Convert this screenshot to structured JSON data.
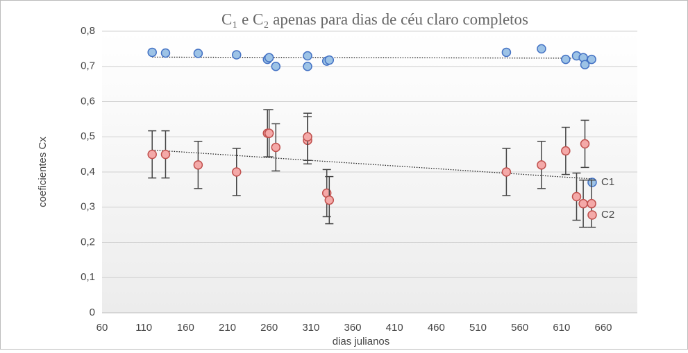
{
  "chart_data": {
    "type": "scatter",
    "title": "C₁ e C₂ apenas para dias de céu claro completos",
    "x_label": "dias julianos",
    "y_label": "coeficientes Cx",
    "x": [
      120,
      136,
      175,
      221,
      258,
      260,
      268,
      306,
      306,
      329,
      332,
      544,
      586,
      615,
      628,
      636,
      638,
      646
    ],
    "series": [
      {
        "name": "C1",
        "color": "#9dc3e6",
        "edge": "#4472c4",
        "values": [
          0.74,
          0.738,
          0.737,
          0.733,
          0.72,
          0.725,
          0.7,
          0.73,
          0.7,
          0.715,
          0.718,
          0.74,
          0.75,
          0.72,
          0.73,
          0.725,
          0.705,
          0.72
        ]
      },
      {
        "name": "C2",
        "color": "#f4a9a8",
        "edge": "#c0504d",
        "values": [
          0.45,
          0.45,
          0.42,
          0.4,
          0.51,
          0.51,
          0.47,
          0.49,
          0.5,
          0.34,
          0.32,
          0.4,
          0.42,
          0.46,
          0.33,
          0.31,
          0.48,
          0.31
        ],
        "errors": [
          0.067,
          0.067,
          0.067,
          0.067,
          0.067,
          0.067,
          0.067,
          0.067,
          0.067,
          0.067,
          0.067,
          0.067,
          0.067,
          0.067,
          0.067,
          0.067,
          0.067,
          0.067
        ]
      }
    ],
    "xlim": [
      60,
      710
    ],
    "xticks": [
      60,
      110,
      160,
      210,
      260,
      310,
      360,
      410,
      460,
      510,
      560,
      610,
      660
    ],
    "ylim": [
      0,
      0.8
    ],
    "yticks": [
      {
        "value": 0,
        "label": "0"
      },
      {
        "value": 0.1,
        "label": "0,1"
      },
      {
        "value": 0.2,
        "label": "0,2"
      },
      {
        "value": 0.3,
        "label": "0,3"
      },
      {
        "value": 0.4,
        "label": "0,4"
      },
      {
        "value": 0.5,
        "label": "0,5"
      },
      {
        "value": 0.6,
        "label": "0,6"
      },
      {
        "value": 0.7,
        "label": "0,7"
      },
      {
        "value": 0.8,
        "label": "0,8"
      }
    ],
    "grid": true,
    "trendline": true,
    "legend": "right"
  }
}
